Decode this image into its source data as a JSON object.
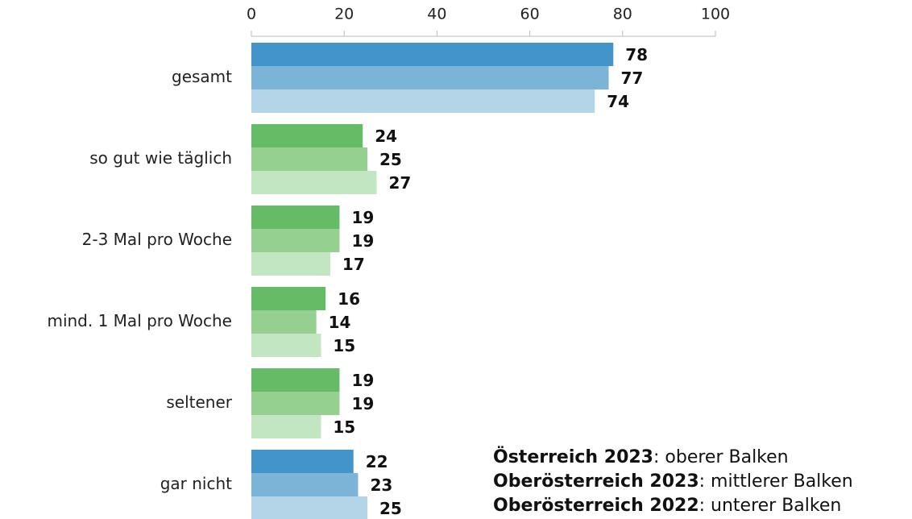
{
  "chart_data": {
    "type": "hbar",
    "categories": [
      "gesamt",
      "so gut wie täglich",
      "2-3 Mal pro Woche",
      "mind. 1 Mal pro Woche",
      "seltener",
      "gar nicht"
    ],
    "series": [
      {
        "name": "Österreich 2023",
        "legend_text": ": oberer Balken",
        "values": [
          78,
          24,
          19,
          16,
          19,
          22
        ],
        "colors": [
          "#4394c8",
          "#66bb66",
          "#66bb66",
          "#66bb66",
          "#66bb66",
          "#4394c8"
        ]
      },
      {
        "name": "Oberösterreich 2023",
        "legend_text": ": mittlerer Balken",
        "values": [
          77,
          25,
          19,
          14,
          19,
          23
        ],
        "colors": [
          "#7cb4d8",
          "#96d090",
          "#96d090",
          "#96d090",
          "#96d090",
          "#7cb4d8"
        ]
      },
      {
        "name": "Oberösterreich 2022",
        "legend_text": ": unterer Balken",
        "values": [
          74,
          27,
          17,
          15,
          15,
          25
        ],
        "colors": [
          "#b4d4e8",
          "#c2e6c2",
          "#c2e6c2",
          "#c2e6c2",
          "#c2e6c2",
          "#b4d4e8"
        ]
      }
    ],
    "xlim": [
      0,
      100
    ],
    "xticks": [
      0,
      20,
      40,
      60,
      80,
      100
    ]
  }
}
